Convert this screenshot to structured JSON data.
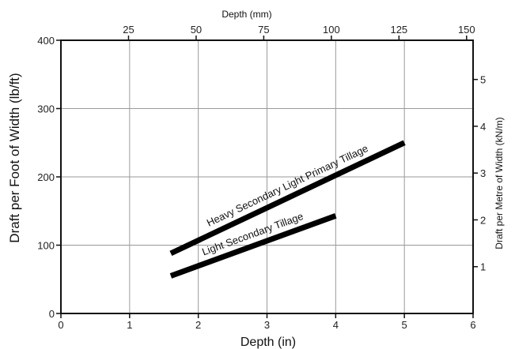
{
  "chart_data": {
    "type": "line",
    "title": "",
    "xlabel": "Depth (in)",
    "ylabel": "Draft per Foot of Width (lb/ft)",
    "top_xlabel": "Depth (mm)",
    "right_ylabel": "Draft per Metre of Width (kN/m)",
    "xlim": [
      0,
      6
    ],
    "ylim": [
      0,
      400
    ],
    "x_ticks": [
      "0",
      "1",
      "2",
      "3",
      "4",
      "5",
      "6"
    ],
    "y_ticks": [
      "0",
      "100",
      "200",
      "300",
      "400"
    ],
    "top_ticks": [
      {
        "value": 25,
        "label": "25"
      },
      {
        "value": 50,
        "label": "50"
      },
      {
        "value": 75,
        "label": "75"
      },
      {
        "value": 100,
        "label": "100"
      },
      {
        "value": 125,
        "label": "125"
      },
      {
        "value": 150,
        "label": "150"
      }
    ],
    "right_ticks": [
      {
        "value": 1,
        "label": "1"
      },
      {
        "value": 2,
        "label": "2"
      },
      {
        "value": 3,
        "label": "3"
      },
      {
        "value": 4,
        "label": "4"
      },
      {
        "value": 5,
        "label": "5"
      }
    ],
    "grid": true,
    "series": [
      {
        "name": "Heavy Secondary Light Primary Tillage",
        "x": [
          1.6,
          5.0
        ],
        "y": [
          88,
          250
        ]
      },
      {
        "name": "Light Secondary Tillage",
        "x": [
          1.6,
          4.0
        ],
        "y": [
          55,
          143
        ]
      }
    ]
  }
}
